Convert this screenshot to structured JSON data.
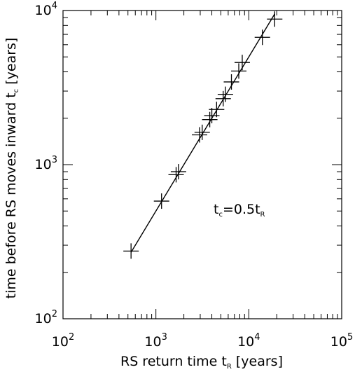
{
  "chart_data": {
    "type": "scatter",
    "xlabel": "RS return time",
    "xlabel_symbol": "t",
    "xlabel_symbol_sub": "R",
    "xlabel_units": "[years]",
    "ylabel": "time before RS moves inward",
    "ylabel_symbol": "t",
    "ylabel_symbol_sub": "c",
    "ylabel_units": "[years]",
    "xscale": "log",
    "yscale": "log",
    "xlim": [
      100,
      100000
    ],
    "ylim": [
      100,
      10000
    ],
    "xticks": [
      {
        "base": "10",
        "exp": "2"
      },
      {
        "base": "10",
        "exp": "3"
      },
      {
        "base": "10",
        "exp": "4"
      },
      {
        "base": "10",
        "exp": "5"
      }
    ],
    "yticks": [
      {
        "base": "10",
        "exp": "2"
      },
      {
        "base": "10",
        "exp": "3"
      },
      {
        "base": "10",
        "exp": "4"
      }
    ],
    "annotation": {
      "lhs": "t",
      "lhs_sub": "c",
      "eq": "=0.5t",
      "rhs_sub": "R"
    },
    "fit": {
      "slope": 0.5,
      "x_range": [
        540,
        19000
      ]
    },
    "points": [
      {
        "x": 540,
        "y": 275
      },
      {
        "x": 1150,
        "y": 580
      },
      {
        "x": 1650,
        "y": 860
      },
      {
        "x": 1750,
        "y": 900
      },
      {
        "x": 2950,
        "y": 1560
      },
      {
        "x": 3150,
        "y": 1620
      },
      {
        "x": 3800,
        "y": 1960
      },
      {
        "x": 4000,
        "y": 2080
      },
      {
        "x": 4500,
        "y": 2280
      },
      {
        "x": 5300,
        "y": 2680
      },
      {
        "x": 5600,
        "y": 2860
      },
      {
        "x": 6500,
        "y": 3440
      },
      {
        "x": 7800,
        "y": 4050
      },
      {
        "x": 8500,
        "y": 4600
      },
      {
        "x": 14000,
        "y": 6700
      },
      {
        "x": 19000,
        "y": 8800
      }
    ],
    "grid": false,
    "legend": "none"
  }
}
